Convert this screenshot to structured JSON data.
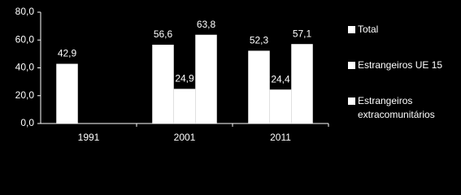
{
  "chart_data": {
    "type": "bar",
    "categories": [
      "1991",
      "2001",
      "2011"
    ],
    "series": [
      {
        "name": "Total",
        "color": "#ffffff",
        "values": [
          42.9,
          56.6,
          52.3
        ],
        "value_labels": [
          "42,9",
          "56,6",
          "52,3"
        ]
      },
      {
        "name": "Estrangeiros UE 15",
        "color": "#ffffff",
        "values": [
          null,
          24.9,
          24.4
        ],
        "value_labels": [
          null,
          "24,9",
          "24,4"
        ]
      },
      {
        "name": "Estrangeiros extracomunitários",
        "color": "#ffffff",
        "values": [
          null,
          63.8,
          57.1
        ],
        "value_labels": [
          null,
          "63,8",
          "57,1"
        ]
      }
    ],
    "ylim": [
      0,
      80
    ],
    "yticks": [
      {
        "value": 0,
        "label": "0,0"
      },
      {
        "value": 20,
        "label": "20,0"
      },
      {
        "value": 40,
        "label": "40,0"
      },
      {
        "value": 60,
        "label": "60,0"
      },
      {
        "value": 80,
        "label": "80,0"
      }
    ],
    "legend": "right"
  }
}
